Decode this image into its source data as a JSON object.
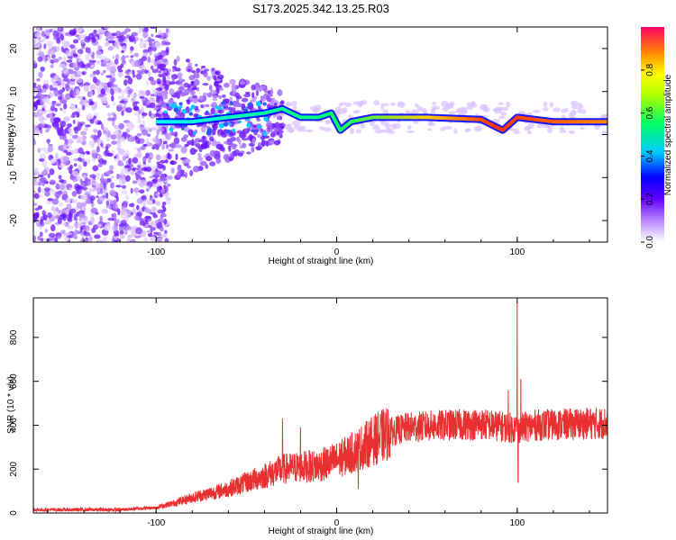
{
  "title": "S173.2025.342.13.25.R03",
  "chart_data": [
    {
      "type": "heatmap",
      "xlabel": "Height of straight line (km)",
      "ylabel": "Frequency (Hz)",
      "xlim": [
        -168,
        150
      ],
      "ylim": [
        -25,
        25
      ],
      "x_ticks": [
        -100,
        0,
        100
      ],
      "y_ticks": [
        -20,
        -10,
        0,
        10,
        20
      ],
      "colorbar": {
        "label": "Normalized spectral amplitude",
        "range": [
          0,
          1
        ],
        "ticks": [
          "0.0",
          "0.2",
          "0.4",
          "0.6",
          "0.8"
        ]
      },
      "ridge": [
        {
          "x": -100,
          "y": 3
        },
        {
          "x": -80,
          "y": 3
        },
        {
          "x": -60,
          "y": 4
        },
        {
          "x": -40,
          "y": 5
        },
        {
          "x": -30,
          "y": 6
        },
        {
          "x": -20,
          "y": 4
        },
        {
          "x": -10,
          "y": 4
        },
        {
          "x": -3,
          "y": 5
        },
        {
          "x": 2,
          "y": 1
        },
        {
          "x": 8,
          "y": 3
        },
        {
          "x": 20,
          "y": 4
        },
        {
          "x": 50,
          "y": 4
        },
        {
          "x": 80,
          "y": 3.5
        },
        {
          "x": 92,
          "y": 1
        },
        {
          "x": 100,
          "y": 4
        },
        {
          "x": 120,
          "y": 3
        },
        {
          "x": 150,
          "y": 3
        }
      ]
    },
    {
      "type": "line",
      "xlabel": "Height of straight line (km)",
      "ylabel": "SNR (10 * v/v)",
      "xlim": [
        -168,
        150
      ],
      "ylim": [
        0,
        980
      ],
      "x_ticks": [
        -100,
        0,
        100
      ],
      "y_ticks": [
        0,
        200,
        400,
        600,
        800
      ],
      "color": "#e83030",
      "series": [
        {
          "values_profile": [
            {
              "x": -168,
              "y": 15
            },
            {
              "x": -120,
              "y": 15
            },
            {
              "x": -100,
              "y": 25
            },
            {
              "x": -90,
              "y": 45
            },
            {
              "x": -80,
              "y": 70
            },
            {
              "x": -70,
              "y": 90
            },
            {
              "x": -60,
              "y": 110
            },
            {
              "x": -50,
              "y": 140
            },
            {
              "x": -40,
              "y": 170
            },
            {
              "x": -30,
              "y": 200
            },
            {
              "x": -20,
              "y": 210
            },
            {
              "x": -10,
              "y": 215
            },
            {
              "x": 0,
              "y": 240
            },
            {
              "x": 10,
              "y": 280
            },
            {
              "x": 20,
              "y": 330
            },
            {
              "x": 30,
              "y": 370
            },
            {
              "x": 40,
              "y": 390
            },
            {
              "x": 60,
              "y": 400
            },
            {
              "x": 80,
              "y": 405
            },
            {
              "x": 90,
              "y": 395
            },
            {
              "x": 100,
              "y": 385
            },
            {
              "x": 110,
              "y": 400
            },
            {
              "x": 130,
              "y": 405
            },
            {
              "x": 150,
              "y": 410
            }
          ],
          "peaks": [
            {
              "x": -30,
              "y": 430
            },
            {
              "x": -20,
              "y": 390
            },
            {
              "x": 100,
              "y": 960
            },
            {
              "x": 95,
              "y": 560
            },
            {
              "x": 102,
              "y": 610
            },
            {
              "x": 100.5,
              "y": 140
            },
            {
              "x": 12,
              "y": 110
            }
          ]
        }
      ]
    }
  ]
}
